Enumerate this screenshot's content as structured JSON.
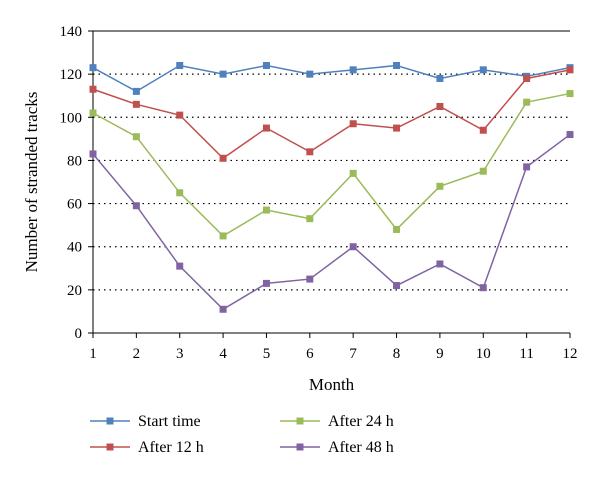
{
  "chart_data": {
    "type": "line",
    "xlabel": "Month",
    "ylabel": "Number of stranded tracks",
    "x": [
      1,
      2,
      3,
      4,
      5,
      6,
      7,
      8,
      9,
      10,
      11,
      12
    ],
    "xlim": [
      1,
      12
    ],
    "ylim": [
      0,
      140
    ],
    "yticks": [
      0,
      20,
      40,
      60,
      80,
      100,
      120,
      140
    ],
    "grid": "horizontal dotted",
    "legend_position": "bottom",
    "series": [
      {
        "name": "Start time",
        "color": "#4F81BD",
        "marker": "square",
        "values": [
          123,
          112,
          124,
          120,
          124,
          120,
          122,
          124,
          118,
          122,
          119,
          123
        ]
      },
      {
        "name": "After 12 h",
        "color": "#C0504D",
        "marker": "square",
        "values": [
          113,
          106,
          101,
          81,
          95,
          84,
          97,
          95,
          105,
          94,
          118,
          122
        ]
      },
      {
        "name": "After 24 h",
        "color": "#9BBB59",
        "marker": "square",
        "values": [
          102,
          91,
          65,
          45,
          57,
          53,
          74,
          48,
          68,
          75,
          107,
          111
        ]
      },
      {
        "name": "After 48 h",
        "color": "#8064A2",
        "marker": "square",
        "values": [
          83,
          59,
          31,
          11,
          23,
          25,
          40,
          22,
          32,
          21,
          77,
          92
        ]
      }
    ]
  }
}
